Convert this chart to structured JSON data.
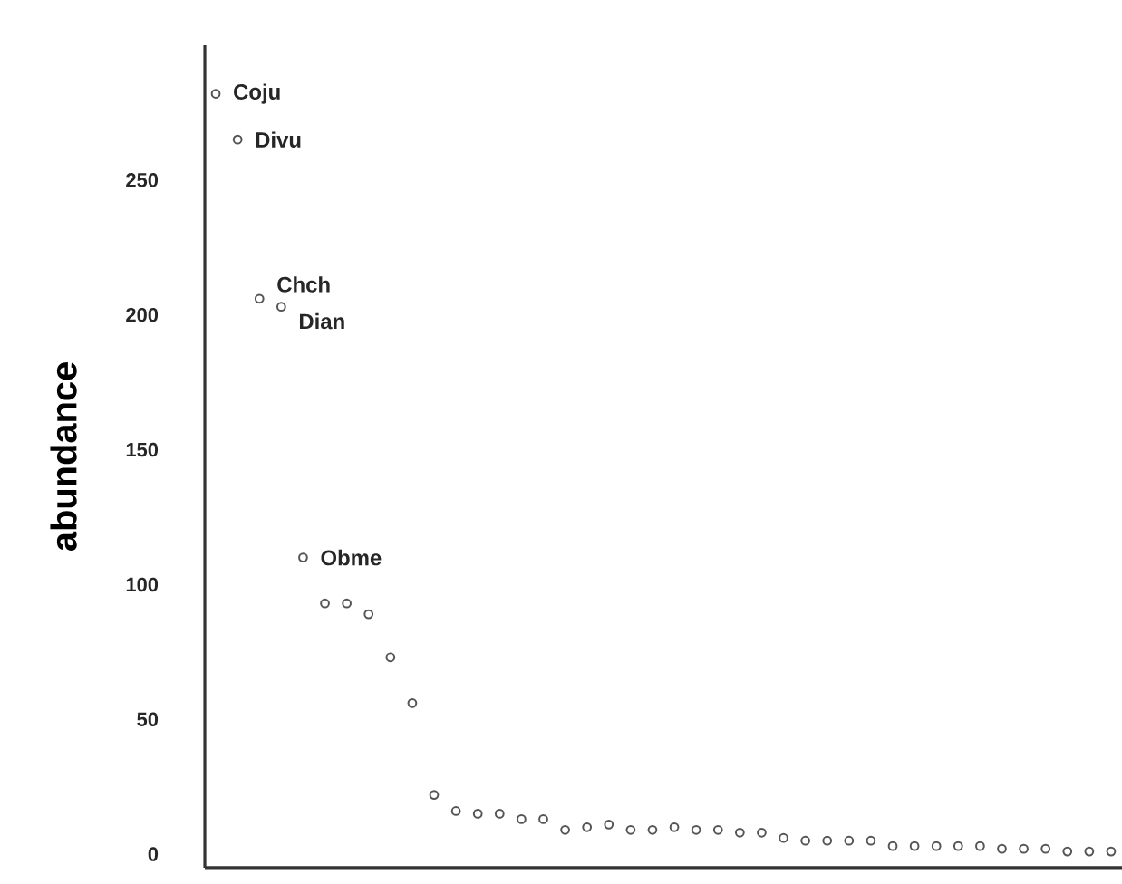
{
  "chart_data": {
    "type": "scatter",
    "ylabel": "abundance",
    "categories": [
      null,
      null,
      null,
      null,
      null,
      null,
      null,
      null,
      null,
      null,
      null,
      null,
      null,
      null,
      null,
      null,
      null,
      null,
      null,
      null,
      null,
      null,
      null,
      null,
      null,
      null,
      null,
      null,
      null,
      null,
      null,
      null,
      null,
      null,
      null,
      null,
      null,
      null,
      null,
      null,
      null,
      null
    ],
    "values": [
      282,
      265,
      206,
      203,
      110,
      93,
      93,
      89,
      73,
      56,
      22,
      16,
      15,
      15,
      13,
      13,
      9,
      10,
      11,
      9,
      9,
      10,
      9,
      9,
      8,
      8,
      6,
      5,
      5,
      5,
      5,
      3,
      3,
      3,
      3,
      3,
      2,
      2,
      2,
      1,
      1,
      1
    ],
    "color": "#555555",
    "marker": "circle",
    "ylim": [
      -5,
      300
    ],
    "yticks": [
      0,
      50,
      100,
      150,
      200,
      250
    ],
    "annotations": [
      "Coju",
      "Divu",
      "Chch",
      "Dian",
      "Obme"
    ]
  }
}
